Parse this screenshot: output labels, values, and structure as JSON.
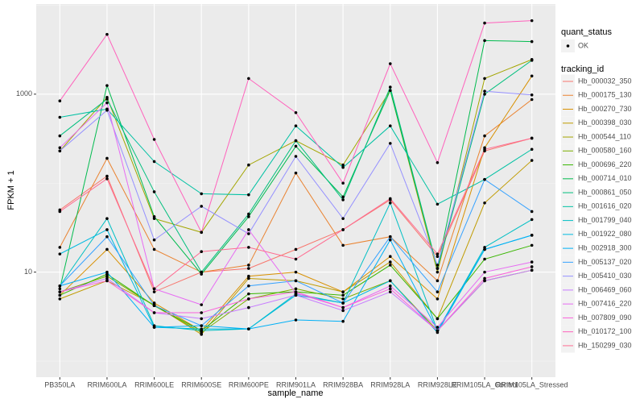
{
  "chart_data": {
    "type": "line",
    "x_label": "sample_name",
    "y_label": "FPKM + 1",
    "y_scale": "log",
    "categories": [
      "PB350LA",
      "RRIM600LA",
      "RRIM600LE",
      "RRIM600SE",
      "RRIM600PE",
      "RRIM901LA",
      "RRIM928BA",
      "RRIM928LA",
      "RRIM928LE",
      "RRIM105LA_Control",
      "RRIM105LA_Stressed"
    ],
    "ylim": [
      0.66,
      10300
    ],
    "yticks": [
      10,
      1000
    ],
    "grid": true,
    "point_color": "#000000",
    "legend_quant_title": "quant_status",
    "legend_quant_items": [
      "OK"
    ],
    "legend_title": "tracking_id",
    "series": [
      {
        "name": "Hb_000032_350",
        "color": "#F8766D",
        "values": [
          50,
          120,
          6,
          10,
          11,
          18,
          30,
          65,
          15,
          230,
          320
        ]
      },
      {
        "name": "Hb_000175_130",
        "color": "#EA8331",
        "values": [
          19,
          190,
          18,
          10,
          12,
          130,
          20,
          25,
          8,
          340,
          870
        ]
      },
      {
        "name": "Hb_000270_730",
        "color": "#D89000",
        "values": [
          5.5,
          18,
          4.5,
          2.2,
          9,
          10,
          6,
          15,
          5,
          250,
          1600
        ]
      },
      {
        "name": "Hb_000398_030",
        "color": "#C09B00",
        "values": [
          5,
          8,
          4.3,
          2,
          8.5,
          8,
          6,
          13,
          3,
          60,
          180
        ]
      },
      {
        "name": "Hb_000544_110",
        "color": "#A3A500",
        "values": [
          230,
          920,
          40,
          28,
          160,
          300,
          160,
          1100,
          10,
          1500,
          2450
        ]
      },
      {
        "name": "Hb_000580_160",
        "color": "#7CAE00",
        "values": [
          6,
          9,
          4.2,
          2.1,
          5,
          6.5,
          5,
          8,
          2.2,
          8,
          10.5
        ]
      },
      {
        "name": "Hb_000696_220",
        "color": "#39B600",
        "values": [
          5.5,
          9.5,
          4.2,
          2.2,
          5.7,
          6,
          5.5,
          12,
          3,
          14,
          20
        ]
      },
      {
        "name": "Hb_000714_010",
        "color": "#00BB4E",
        "values": [
          6.5,
          1250,
          42,
          9.5,
          42,
          260,
          70,
          1100,
          11,
          4000,
          3900
        ]
      },
      {
        "name": "Hb_000861_050",
        "color": "#00BF7D",
        "values": [
          340,
          880,
          80,
          10,
          45,
          300,
          65,
          1200,
          11,
          1000,
          2400
        ]
      },
      {
        "name": "Hb_001616_020",
        "color": "#00C1A3",
        "values": [
          550,
          680,
          175,
          76,
          74,
          440,
          150,
          440,
          58,
          110,
          240
        ]
      },
      {
        "name": "Hb_001799_040",
        "color": "#00BFC4",
        "values": [
          7,
          40,
          2.5,
          2.2,
          2.3,
          5.7,
          4.5,
          60,
          2.2,
          19,
          39
        ]
      },
      {
        "name": "Hb_001922_080",
        "color": "#00BAE0",
        "values": [
          16,
          30,
          2.4,
          2.3,
          2.3,
          5.5,
          4.5,
          8,
          2.1,
          18,
          26
        ]
      },
      {
        "name": "Hb_002918_300",
        "color": "#00B0F6",
        "values": [
          7,
          10,
          2.4,
          2.5,
          2.3,
          2.9,
          2.8,
          23,
          2.2,
          18,
          26
        ]
      },
      {
        "name": "Hb_005137_020",
        "color": "#35A2FF",
        "values": [
          7,
          25,
          4.2,
          2.5,
          7,
          8,
          4.5,
          25,
          6,
          110,
          48
        ]
      },
      {
        "name": "Hb_005410_030",
        "color": "#9590FF",
        "values": [
          230,
          660,
          23,
          55,
          27,
          200,
          40,
          280,
          12,
          1080,
          980
        ]
      },
      {
        "name": "Hb_006469_060",
        "color": "#C77CFF",
        "values": [
          6,
          8.5,
          3.5,
          3,
          4,
          5.5,
          3.7,
          6,
          2.2,
          8,
          10.5
        ]
      },
      {
        "name": "Hb_007416_220",
        "color": "#E76BF3",
        "values": [
          250,
          800,
          6.5,
          4.3,
          30,
          5.8,
          4,
          7,
          2.4,
          10,
          13
        ]
      },
      {
        "name": "Hb_007809_090",
        "color": "#FA62DB",
        "values": [
          6,
          8,
          3.5,
          3.5,
          5,
          6,
          4,
          6.5,
          2.2,
          8.5,
          11.5
        ]
      },
      {
        "name": "Hb_010172_100",
        "color": "#FF62BC",
        "values": [
          840,
          4700,
          310,
          28,
          1500,
          620,
          100,
          2200,
          170,
          6300,
          6700
        ]
      },
      {
        "name": "Hb_150299_030",
        "color": "#FF6C91",
        "values": [
          48,
          112,
          6.5,
          17,
          19,
          14,
          30,
          67,
          16,
          240,
          320
        ]
      }
    ]
  }
}
